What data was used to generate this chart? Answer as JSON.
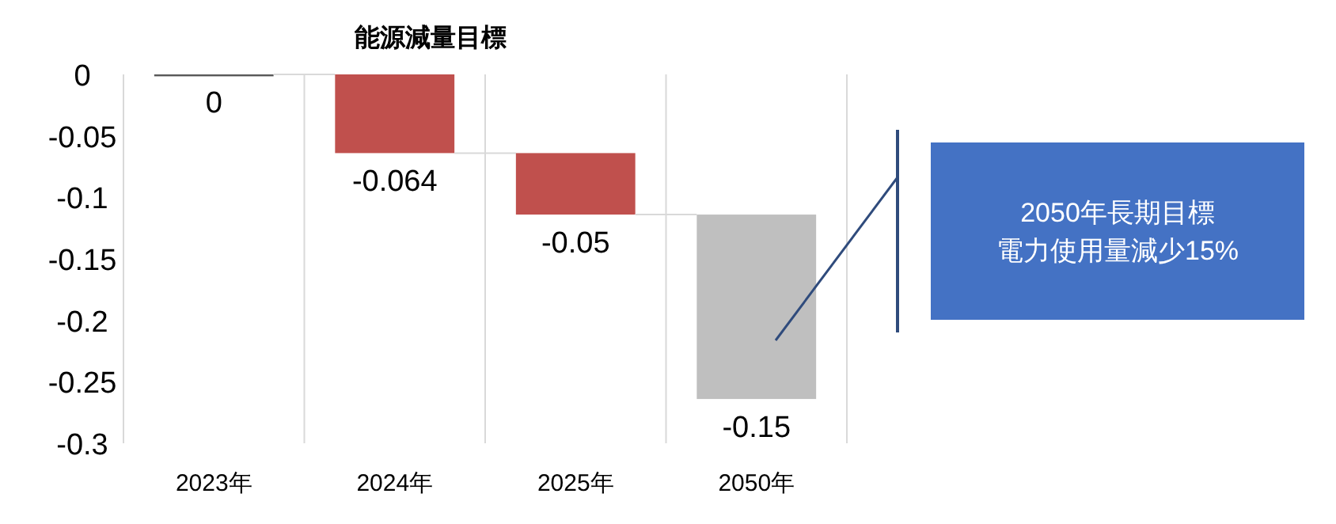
{
  "chart_data": {
    "type": "bar",
    "title": "能源減量目標",
    "categories": [
      "2023年",
      "2024年",
      "2025年",
      "2050年"
    ],
    "values": [
      0,
      -0.064,
      -0.05,
      -0.15
    ],
    "base": [
      0,
      0,
      -0.064,
      -0.114
    ],
    "colors": [
      "#595959",
      "#c0504d",
      "#c0504d",
      "#bfbfbf"
    ],
    "ylim": [
      -0.3,
      0
    ],
    "yticks": [
      0,
      -0.05,
      -0.1,
      -0.15,
      -0.2,
      -0.25,
      -0.3
    ],
    "grid": "x",
    "data_labels": true,
    "annotations": [
      "2050年長期目標",
      "電力使用量減少15%"
    ]
  }
}
